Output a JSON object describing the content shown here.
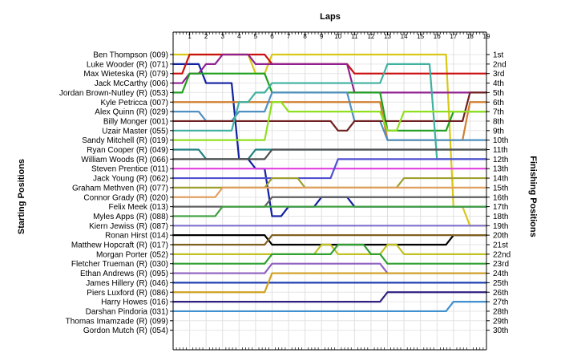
{
  "chart_data": {
    "type": "line",
    "title": "",
    "xlabel": "Laps",
    "ylabel_left": "Starting Positions",
    "ylabel_right": "Finishing Positions",
    "x": [
      0,
      1,
      2,
      3,
      4,
      5,
      6,
      7,
      8,
      9,
      10,
      11,
      12,
      13,
      14,
      15,
      16,
      17,
      18,
      19
    ],
    "lap_labels": [
      "1",
      "2",
      "3",
      "4",
      "5",
      "6",
      "7",
      "8",
      "9",
      "10",
      "11",
      "12",
      "13",
      "14",
      "15",
      "16",
      "17",
      "18",
      "19"
    ],
    "ylim": [
      1,
      30
    ],
    "grid": true,
    "starting_positions": [
      "Ben Thompson (009)",
      "Luke Wooder (R) (071)",
      "Max Wieteska (R) (079)",
      "Jack McCarthy (006)",
      "Jordan Brown-Nutley (R) (053)",
      "Kyle Petricca (007)",
      "Alex Quinn (R) (029)",
      "Billy Monger (001)",
      "Uzair Master (055)",
      "Sandy Mitchell (R) (019)",
      "Ryan Cooper (R) (049)",
      "William Woods (R) (066)",
      "Steven Prentice (011)",
      "Jack Young (R) (062)",
      "Graham Methven (R) (077)",
      "Connor Grady (R) (020)",
      "Felix Meek (013)",
      "Myles Apps (R) (088)",
      "Kiern Jewiss (R) (087)",
      "Ronan Hirst (014)",
      "Matthew Hopcraft (R) (017)",
      "Morgan Porter (052)",
      "Fletcher Trueman (R) (030)",
      "Ethan Andrews (R) (095)",
      "James Hillery (R) (046)",
      "Piers Luxford (R) (086)",
      "Harry Howes (016)",
      "Darshan Pindoria (031)",
      "Thomas Imamzade (R) (099)",
      "Gordon Mutch (R) (054)"
    ],
    "finishing_positions": [
      "1st",
      "2nd",
      "3rd",
      "4th",
      "5th",
      "6th",
      "7th",
      "8th",
      "9th",
      "10th",
      "11th",
      "12th",
      "13th",
      "14th",
      "15th",
      "16th",
      "17th",
      "18th",
      "19th",
      "20th",
      "21st",
      "22nd",
      "23rd",
      "24th",
      "25th",
      "26th",
      "27th",
      "28th",
      "29th",
      "30th"
    ],
    "series": [
      {
        "color": "#d8c818",
        "values": [
          1,
          1,
          1,
          1,
          1,
          3,
          1,
          1,
          1,
          1,
          1,
          1,
          1,
          1,
          1,
          1,
          1,
          17,
          19,
          19
        ]
      },
      {
        "color": "#1020a0",
        "values": [
          2,
          2,
          4,
          4,
          12,
          13,
          18,
          17,
          17,
          16,
          16,
          17,
          17,
          17,
          17,
          17,
          17,
          17,
          17,
          17
        ]
      },
      {
        "color": "#cc1010",
        "values": [
          3,
          1,
          1,
          1,
          1,
          1,
          2,
          2,
          2,
          2,
          2,
          3,
          3,
          3,
          3,
          3,
          3,
          3,
          3,
          3
        ]
      },
      {
        "color": "#902090",
        "values": [
          4,
          3,
          2,
          1,
          1,
          2,
          2,
          2,
          2,
          2,
          2,
          5,
          5,
          5,
          5,
          5,
          5,
          5,
          5,
          5
        ]
      },
      {
        "color": "#20a020",
        "values": [
          5,
          3,
          3,
          3,
          3,
          3,
          5,
          5,
          5,
          5,
          5,
          5,
          5,
          9,
          9,
          9,
          9,
          7,
          7,
          7
        ]
      },
      {
        "color": "#d08030",
        "values": [
          6,
          6,
          6,
          6,
          6,
          6,
          6,
          6,
          6,
          6,
          6,
          6,
          6,
          10,
          10,
          10,
          10,
          10,
          6,
          6
        ]
      },
      {
        "color": "#5090c0",
        "values": [
          7,
          7,
          8,
          8,
          7,
          7,
          5,
          5,
          5,
          5,
          5,
          8,
          8,
          10,
          10,
          10,
          10,
          10,
          10,
          10
        ]
      },
      {
        "color": "#702020",
        "values": [
          8,
          8,
          8,
          8,
          8,
          8,
          8,
          8,
          8,
          8,
          9,
          8,
          8,
          8,
          8,
          8,
          8,
          8,
          5,
          5
        ]
      },
      {
        "color": "#40b0a0",
        "values": [
          9,
          9,
          9,
          9,
          6,
          5,
          4,
          4,
          4,
          4,
          4,
          4,
          4,
          2,
          2,
          2,
          12,
          12,
          12,
          12
        ]
      },
      {
        "color": "#90e020",
        "values": [
          10,
          10,
          10,
          10,
          10,
          10,
          6,
          7,
          7,
          7,
          7,
          7,
          7,
          9,
          7,
          7,
          7,
          7,
          7,
          7
        ]
      },
      {
        "color": "#208080",
        "values": [
          11,
          11,
          12,
          12,
          12,
          11,
          11,
          11,
          11,
          11,
          11,
          11,
          11,
          11,
          11,
          11,
          11,
          11,
          11,
          11
        ]
      },
      {
        "color": "#505050",
        "values": [
          12,
          12,
          12,
          12,
          12,
          12,
          11,
          11,
          11,
          11,
          11,
          11,
          11,
          11,
          11,
          11,
          11,
          11,
          11,
          11
        ]
      },
      {
        "color": "#e040e0",
        "values": [
          13,
          13,
          13,
          13,
          13,
          13,
          13,
          13,
          13,
          13,
          13,
          13,
          13,
          13,
          13,
          13,
          13,
          13,
          13,
          13
        ]
      },
      {
        "color": "#5050d0",
        "values": [
          14,
          14,
          14,
          14,
          14,
          14,
          14,
          14,
          14,
          14,
          12,
          12,
          12,
          12,
          12,
          12,
          12,
          12,
          12,
          12
        ]
      },
      {
        "color": "#a0a030",
        "values": [
          15,
          15,
          15,
          15,
          15,
          15,
          14,
          14,
          15,
          15,
          15,
          15,
          15,
          15,
          14,
          14,
          14,
          14,
          14,
          14
        ]
      },
      {
        "color": "#e0a060",
        "values": [
          16,
          16,
          16,
          15,
          15,
          15,
          15,
          15,
          15,
          15,
          15,
          15,
          15,
          15,
          15,
          15,
          15,
          15,
          15,
          15
        ]
      },
      {
        "color": "#606060",
        "values": [
          17,
          17,
          17,
          17,
          17,
          17,
          16,
          16,
          16,
          16,
          16,
          16,
          16,
          16,
          16,
          16,
          16,
          16,
          16,
          16
        ]
      },
      {
        "color": "#40a040",
        "values": [
          18,
          18,
          18,
          17,
          17,
          17,
          17,
          17,
          17,
          17,
          17,
          17,
          17,
          17,
          17,
          17,
          17,
          17,
          17,
          17
        ]
      },
      {
        "color": "#8070d0",
        "values": [
          19,
          19,
          19,
          19,
          19,
          19,
          19,
          19,
          19,
          19,
          19,
          19,
          19,
          19,
          19,
          19,
          19,
          19,
          19,
          19
        ]
      },
      {
        "color": "#000000",
        "values": [
          20,
          20,
          20,
          20,
          20,
          20,
          21,
          21,
          21,
          21,
          21,
          21,
          21,
          21,
          21,
          21,
          21,
          20,
          20,
          20
        ]
      },
      {
        "color": "#806020",
        "values": [
          21,
          21,
          21,
          21,
          21,
          21,
          20,
          20,
          20,
          20,
          20,
          20,
          20,
          20,
          20,
          20,
          20,
          20,
          20,
          20
        ]
      },
      {
        "color": "#c0c020",
        "values": [
          22,
          22,
          22,
          22,
          22,
          22,
          22,
          22,
          22,
          21,
          22,
          22,
          22,
          21,
          22,
          22,
          22,
          22,
          22,
          22
        ]
      },
      {
        "color": "#30a030",
        "values": [
          23,
          23,
          23,
          23,
          23,
          23,
          22,
          22,
          22,
          22,
          21,
          21,
          22,
          23,
          23,
          23,
          23,
          23,
          23,
          23
        ]
      },
      {
        "color": "#9060c0",
        "values": [
          24,
          24,
          24,
          24,
          24,
          24,
          23,
          23,
          23,
          23,
          23,
          23,
          23,
          24,
          24,
          24,
          24,
          24,
          24,
          24
        ]
      },
      {
        "color": "#2040b0",
        "values": [
          25,
          25,
          25,
          25,
          25,
          25,
          25,
          25,
          25,
          25,
          25,
          25,
          25,
          25,
          25,
          25,
          25,
          25,
          25,
          25
        ]
      },
      {
        "color": "#d0a020",
        "values": [
          26,
          26,
          26,
          26,
          26,
          26,
          24,
          24,
          24,
          24,
          24,
          24,
          24,
          24,
          24,
          24,
          24,
          24,
          24,
          24
        ]
      },
      {
        "color": "#302080",
        "values": [
          27,
          27,
          27,
          27,
          27,
          27,
          27,
          27,
          27,
          27,
          27,
          27,
          27,
          26,
          26,
          26,
          26,
          26,
          26,
          26
        ]
      },
      {
        "color": "#4090d0",
        "values": [
          28,
          28,
          28,
          28,
          28,
          28,
          28,
          28,
          28,
          28,
          28,
          28,
          28,
          28,
          28,
          28,
          28,
          27,
          27,
          27
        ]
      }
    ]
  }
}
